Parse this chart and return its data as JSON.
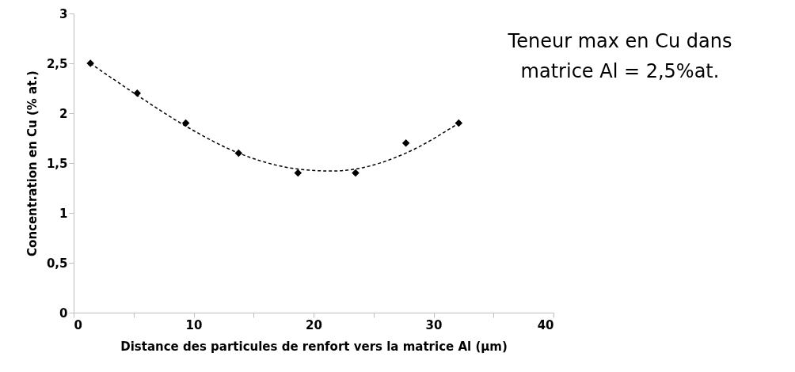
{
  "chart_data": {
    "type": "scatter",
    "xlabel": "Distance des particules de renfort vers la matrice Al (µm)",
    "ylabel": "Concentration en Cu (% at.)",
    "annotations": [
      "Teneur max en Cu dans\nmatrice Al = 2,5%at."
    ],
    "xlim": [
      0,
      40
    ],
    "xticks": [
      0,
      {
        "value": 5,
        "label": null
      },
      10,
      {
        "value": 15,
        "label": null
      },
      20,
      {
        "value": 25,
        "label": null
      },
      30,
      {
        "value": 35,
        "label": null
      },
      40
    ],
    "ylim": [
      0,
      3
    ],
    "yticks": [
      0,
      {
        "value": 0.5,
        "label": "0,5"
      },
      1,
      {
        "value": 1.5,
        "label": "1,5"
      },
      2,
      {
        "value": 2.5,
        "label": "2,5"
      },
      3
    ],
    "grid": false,
    "series": [
      {
        "color": "#000000",
        "marker": "diamond",
        "x": [
          1.4,
          5.3,
          9.35,
          13.75,
          18.7,
          23.5,
          27.7,
          32.1
        ],
        "values": [
          2.5,
          2.2,
          1.9,
          1.6,
          1.4,
          1.4,
          1.7,
          1.9
        ]
      },
      {
        "type": "line",
        "color": "#000000",
        "line_style": "dashed",
        "x": [
          1.4,
          5.3,
          9.35,
          13.75,
          18.7,
          21.5,
          23.5,
          27.7,
          32.1
        ],
        "values": [
          2.5,
          2.18,
          1.87,
          1.6,
          1.44,
          1.42,
          1.44,
          1.6,
          1.9
        ]
      }
    ]
  }
}
